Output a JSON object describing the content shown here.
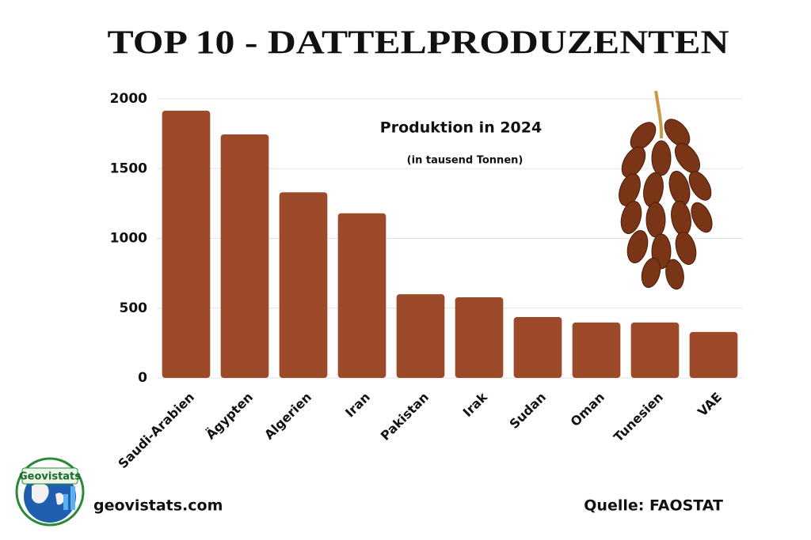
{
  "chart_data": {
    "type": "bar",
    "title": "TOP 10 - DATTELPRODUZENTEN",
    "subtitle": "Produktion in 2024",
    "note": "(in tausend Tonnen)",
    "categories": [
      "Saudi-Arabien",
      "Ägypten",
      "Algerien",
      "Iran",
      "Pakistan",
      "Irak",
      "Sudan",
      "Oman",
      "Tunesien",
      "VAE"
    ],
    "values": [
      1915,
      1745,
      1330,
      1180,
      600,
      578,
      436,
      397,
      397,
      329
    ],
    "color": "#9c4a29",
    "ylim": [
      0,
      2000
    ],
    "yticks": [
      0,
      500,
      1000,
      1500,
      2000
    ],
    "grid": true,
    "logo_text": "Geovistats",
    "website": "geovistats.com",
    "source": "Quelle: FAOSTAT"
  }
}
